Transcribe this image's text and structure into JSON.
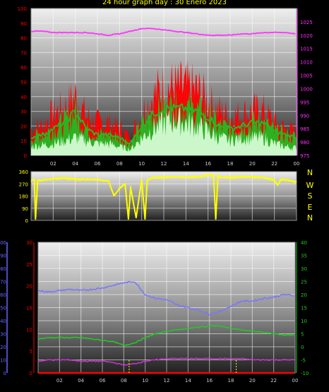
{
  "title": "24 hour graph day : 30 Enero 2023",
  "compass": [
    "N",
    "W",
    "S",
    "E",
    "N"
  ],
  "colors": {
    "temp_red": "#ff0000",
    "gust_green": "#22bb22",
    "wind_white": "#ddffdd",
    "pressure_magenta": "#ff33ff",
    "direction_yellow": "#ffff00",
    "humidity_blue": "#7777ff",
    "temperature_green": "#22cc22",
    "dewpoint_magenta": "#cc33cc",
    "rain_red": "#ff0000",
    "left_axis_red": "#ff0000",
    "left_axis_blue": "#6666ff",
    "right_axis_green": "#22cc22",
    "right_axis_magenta": "#ff33ff",
    "axis_yellow": "#ffff00"
  },
  "chart_data": [
    {
      "type": "line",
      "name": "wind",
      "x_ticks": [
        "02",
        "04",
        "06",
        "08",
        "10",
        "12",
        "14",
        "16",
        "18",
        "20",
        "22",
        "00"
      ],
      "y_left_ticks": [
        "0",
        "10",
        "20",
        "30",
        "40",
        "50",
        "60",
        "70",
        "80",
        "90",
        "100"
      ],
      "y_right_ticks": [
        "975",
        "980",
        "985",
        "990",
        "995",
        "1000",
        "1005",
        "1010",
        "1015",
        "1020",
        "1025"
      ],
      "ylim_left": [
        0,
        100
      ],
      "ylim_right": [
        975,
        1030
      ],
      "hours": [
        0,
        1,
        2,
        3,
        4,
        5,
        6,
        7,
        8,
        9,
        10,
        11,
        12,
        13,
        14,
        15,
        16,
        17,
        18,
        19,
        20,
        21,
        22,
        23,
        24
      ],
      "series": [
        {
          "color_key": "temp_red",
          "axis": "left",
          "values": [
            18,
            20,
            28,
            32,
            40,
            26,
            22,
            22,
            18,
            12,
            28,
            40,
            46,
            46,
            45,
            44,
            36,
            30,
            26,
            28,
            30,
            30,
            22,
            18,
            16
          ]
        },
        {
          "color_key": "gust_green",
          "axis": "left",
          "values": [
            12,
            14,
            18,
            22,
            30,
            18,
            14,
            14,
            12,
            8,
            20,
            28,
            32,
            32,
            32,
            30,
            26,
            20,
            18,
            20,
            22,
            22,
            16,
            14,
            12
          ]
        },
        {
          "color_key": "wind_white",
          "axis": "left",
          "values": [
            6,
            7,
            8,
            10,
            12,
            10,
            8,
            8,
            6,
            4,
            12,
            18,
            22,
            24,
            22,
            20,
            16,
            12,
            10,
            12,
            12,
            12,
            8,
            6,
            5
          ]
        },
        {
          "color_key": "pressure_magenta",
          "axis": "right",
          "values": [
            1021.5,
            1021.5,
            1021,
            1021,
            1021,
            1021,
            1020.5,
            1020,
            1020.5,
            1021.5,
            1022.5,
            1022.5,
            1022,
            1021.5,
            1021,
            1020.5,
            1020,
            1020,
            1020,
            1020.5,
            1020.5,
            1021,
            1021,
            1021,
            1020.5
          ]
        }
      ]
    },
    {
      "type": "line",
      "name": "direction",
      "y_left_ticks": [
        "0",
        "90",
        "180",
        "270",
        "360"
      ],
      "ylim": [
        0,
        360
      ],
      "hours": [
        0,
        0.3,
        0.4,
        0.6,
        1,
        2,
        3,
        4,
        5,
        6,
        7,
        7.5,
        8,
        8.5,
        8.8,
        9,
        9.5,
        10,
        10.3,
        10.5,
        11,
        12,
        13,
        14,
        15,
        16,
        16.5,
        16.7,
        16.9,
        17,
        18,
        19,
        20,
        21,
        22,
        22.3,
        22.6,
        23,
        24
      ],
      "values": [
        290,
        300,
        10,
        290,
        300,
        305,
        310,
        300,
        305,
        300,
        290,
        180,
        240,
        270,
        10,
        250,
        20,
        300,
        10,
        300,
        320,
        320,
        325,
        320,
        325,
        330,
        330,
        10,
        330,
        320,
        320,
        325,
        320,
        315,
        300,
        260,
        300,
        305,
        280
      ]
    },
    {
      "type": "line",
      "name": "temperature-humidity",
      "x_ticks": [
        "02",
        "04",
        "06",
        "08",
        "10",
        "12",
        "14",
        "16",
        "18",
        "20",
        "22",
        "00"
      ],
      "y_left_ticks": [
        "0",
        "10",
        "20",
        "30",
        "40",
        "50",
        "60",
        "70",
        "80",
        "90",
        "100"
      ],
      "y_left2_ticks": [
        "0",
        "5",
        "10",
        "15",
        "20",
        "25",
        "30"
      ],
      "y_right_ticks": [
        "-10",
        "-5",
        "0",
        "5",
        "10",
        "15",
        "20",
        "25",
        "30",
        "35",
        "40"
      ],
      "ylim_left": [
        0,
        100
      ],
      "ylim_left2": [
        0,
        30
      ],
      "ylim_right": [
        -10,
        40
      ],
      "hours": [
        0,
        1,
        2,
        3,
        4,
        5,
        6,
        7,
        8,
        9,
        10,
        11,
        12,
        13,
        14,
        15,
        16,
        17,
        18,
        19,
        20,
        21,
        22,
        23,
        24
      ],
      "markers_hours": [
        8.5,
        18.5
      ],
      "series": [
        {
          "color_key": "humidity_blue",
          "axis": "left",
          "values": [
            63,
            62,
            63,
            64,
            63,
            64,
            65,
            67,
            69,
            70,
            60,
            57,
            56,
            52,
            50,
            48,
            45,
            47,
            51,
            55,
            55,
            57,
            58,
            60,
            59
          ]
        },
        {
          "color_key": "temperature_green",
          "axis": "right",
          "values": [
            3,
            3.5,
            3.5,
            3.5,
            3.5,
            3,
            2.5,
            2,
            0.5,
            1.5,
            3.5,
            5,
            6,
            6.5,
            7,
            7.5,
            8,
            8,
            7,
            6.5,
            6,
            5.5,
            5,
            4.5,
            4.5
          ]
        },
        {
          "color_key": "dewpoint_magenta",
          "axis": "right",
          "values": [
            -5.5,
            -5,
            -5,
            -5,
            -5.5,
            -5.5,
            -5.5,
            -6,
            -7,
            -6.5,
            -5.5,
            -5,
            -4.5,
            -4.5,
            -4.5,
            -4.5,
            -4.5,
            -4.5,
            -4.5,
            -4.5,
            -5,
            -5,
            -5,
            -5,
            -5
          ]
        },
        {
          "color_key": "rain_red",
          "axis": "left2",
          "values": [
            0,
            0,
            0,
            0,
            0,
            0,
            0,
            0,
            0,
            0,
            0,
            0,
            0,
            0,
            0,
            0,
            0,
            0,
            0,
            0,
            0,
            0,
            0,
            0,
            0
          ]
        }
      ]
    }
  ]
}
